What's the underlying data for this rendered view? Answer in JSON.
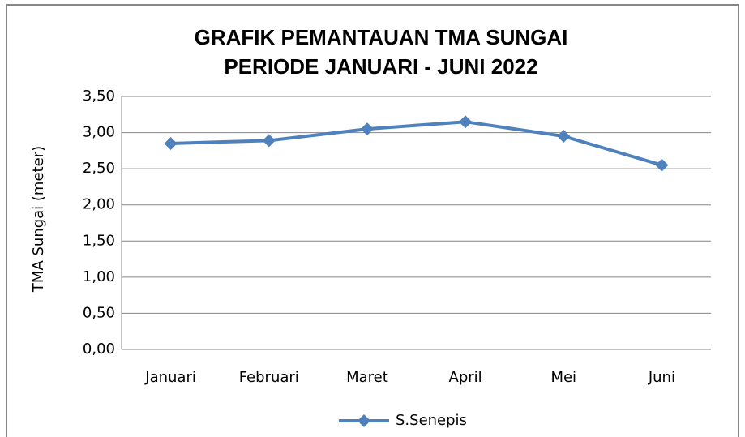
{
  "chart_data": {
    "type": "line",
    "title": [
      "GRAFIK  PEMANTAUAN TMA SUNGAI",
      "PERIODE JANUARI - JUNI 2022"
    ],
    "y_label": "TMA Sungai (meter)",
    "categories": [
      "Januari",
      "Februari",
      "Maret",
      "April",
      "Mei",
      "Juni"
    ],
    "series": [
      {
        "name": "S.Senepis",
        "color": "#4f81bd",
        "values": [
          2.85,
          2.89,
          3.05,
          3.15,
          2.95,
          2.55
        ]
      }
    ],
    "ylim": [
      0,
      3.5
    ],
    "yticks": [
      {
        "value": 0,
        "label": "0,00"
      },
      {
        "value": 0.5,
        "label": "0,50"
      },
      {
        "value": 1,
        "label": "1,00"
      },
      {
        "value": 1.5,
        "label": "1,50"
      },
      {
        "value": 2,
        "label": "2,00"
      },
      {
        "value": 2.5,
        "label": "2,50"
      },
      {
        "value": 3,
        "label": "3,00"
      },
      {
        "value": 3.5,
        "label": "3,50"
      }
    ],
    "grid": true,
    "legend": "bottom"
  }
}
